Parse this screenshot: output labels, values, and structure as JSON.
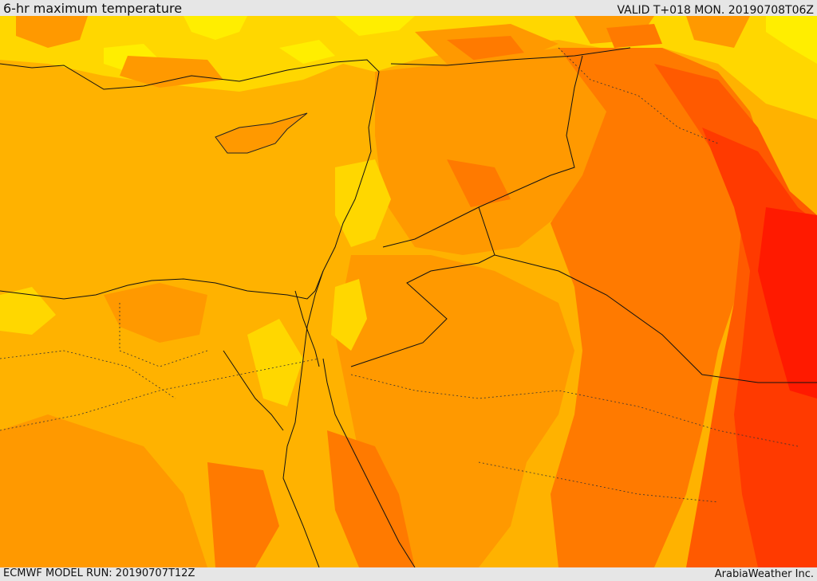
{
  "header": {
    "title": "6-hr maximum temperature",
    "valid": "VALID T+018 MON. 20190708T06Z"
  },
  "footer": {
    "model_run": "ECMWF MODEL RUN: 20190707T12Z",
    "credit": "ArabiaWeather Inc."
  },
  "map": {
    "palette": {
      "yellow": "#ffee00",
      "light_orange": "#ffd700",
      "orange_1": "#ffb200",
      "orange_2": "#ff9900",
      "orange_3": "#ff7a00",
      "red_orange": "#ff5a00",
      "red": "#ff3a00",
      "deep_red": "#ff1a00"
    }
  }
}
